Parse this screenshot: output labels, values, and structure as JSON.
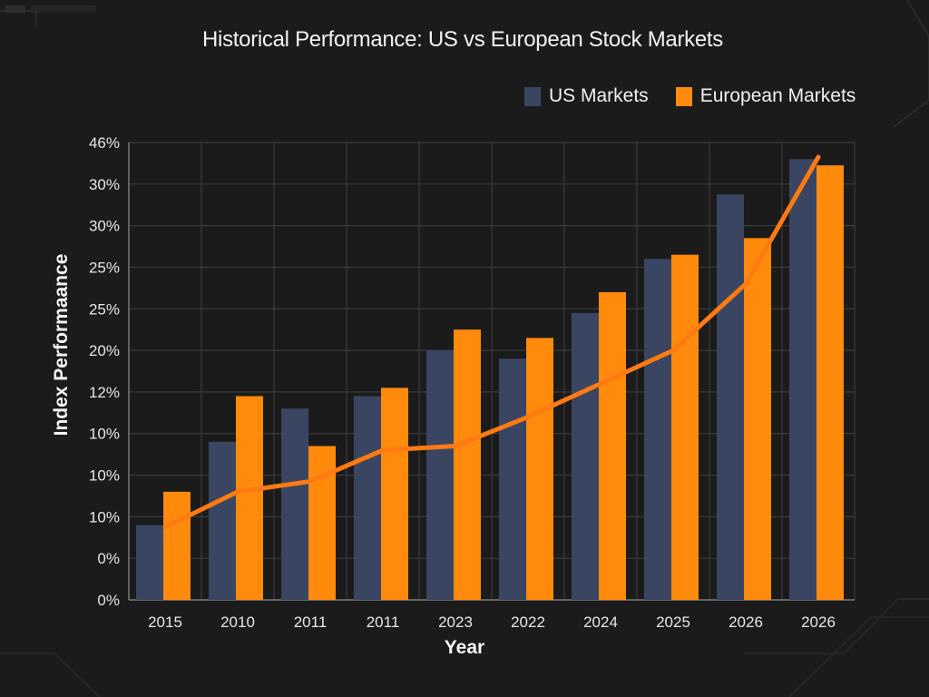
{
  "chart_data": {
    "type": "bar",
    "title": "Historical Performance: US vs European Stock Markets",
    "xlabel": "Year",
    "ylabel": "Index Performaance",
    "categories": [
      "2015",
      "2010",
      "2011",
      "2011",
      "2023",
      "2022",
      "2024",
      "2025",
      "2026",
      "2026"
    ],
    "y_tick_labels": [
      "0%",
      "0%",
      "10%",
      "10%",
      "10%",
      "12%",
      "20%",
      "25%",
      "25%",
      "30%",
      "30%",
      "46%"
    ],
    "ylim": [
      0,
      11
    ],
    "grid": true,
    "legend_position": "top-right",
    "series": [
      {
        "name": "US Markets",
        "kind": "bar",
        "color": "#3a4661",
        "values": [
          1.8,
          3.8,
          4.6,
          4.9,
          6.0,
          5.8,
          6.9,
          8.2,
          9.75,
          10.6
        ]
      },
      {
        "name": "European Markets",
        "kind": "bar",
        "color": "#ff8a0c",
        "values": [
          2.6,
          4.9,
          3.7,
          5.1,
          6.5,
          6.3,
          7.4,
          8.3,
          8.7,
          10.45
        ]
      },
      {
        "kind": "line",
        "color": "#ff7a12",
        "values": [
          1.75,
          2.6,
          2.85,
          3.6,
          3.7,
          4.4,
          5.2,
          6.0,
          7.6,
          10.65
        ]
      }
    ]
  }
}
